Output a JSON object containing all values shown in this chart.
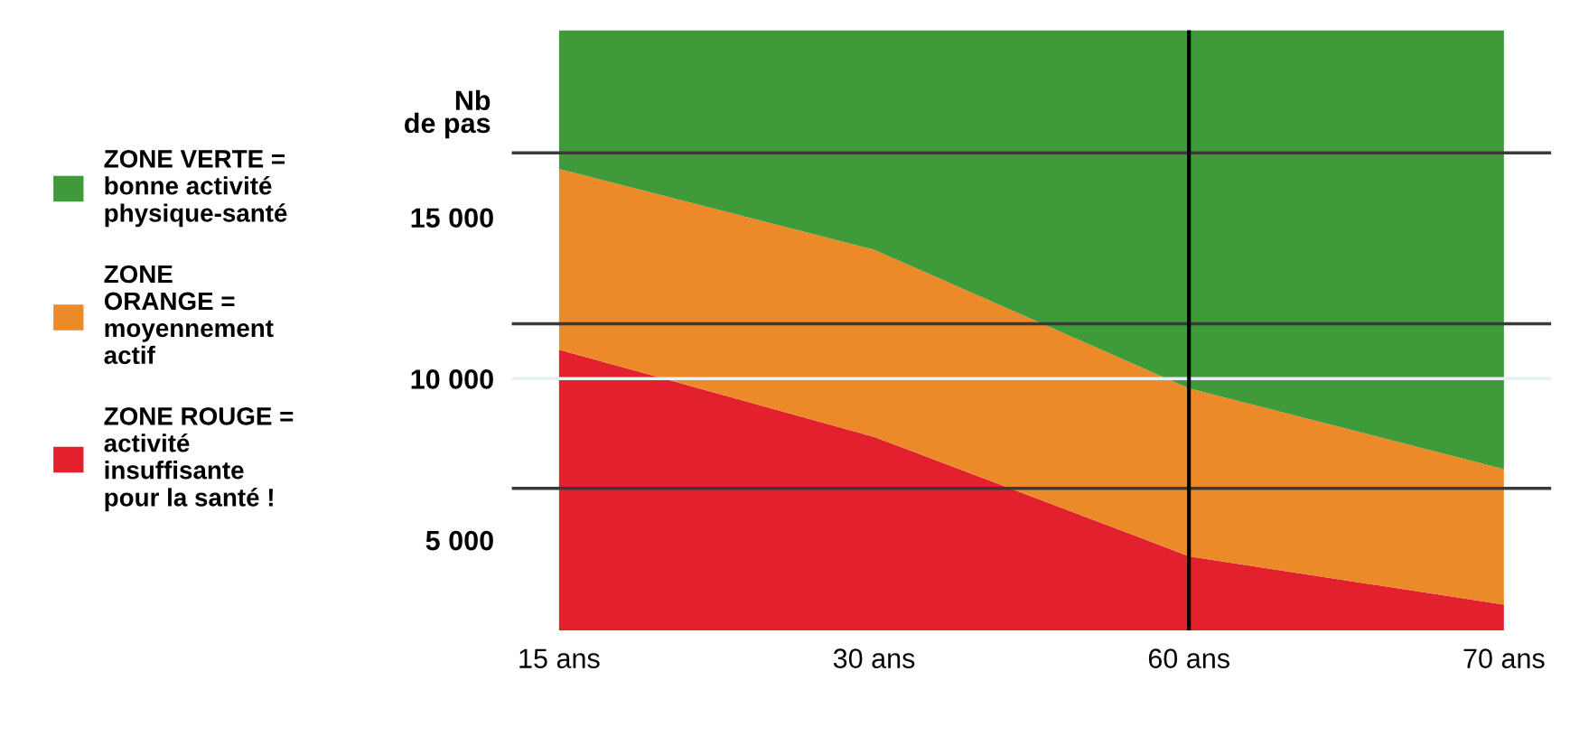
{
  "chart_data": {
    "type": "area",
    "stacked": true,
    "ylabel": "Nb\nde pas",
    "categories": [
      "15 ans",
      "30 ans",
      "60 ans",
      "70 ans"
    ],
    "series": [
      {
        "name": "ZONE ROUGE =\nactivité\ninsuffisante\npour la santé !",
        "color": "#e3202e",
        "values": [
          10900,
          8200,
          4500,
          3000
        ]
      },
      {
        "name": "ZONE\nORANGE =\nmoyennement\nactif",
        "color": "#ec8a2a",
        "values": [
          5600,
          5800,
          5200,
          4200
        ]
      },
      {
        "name": "ZONE VERTE =\nbonne activité\nphysique-santé",
        "color": "#3f9a3a",
        "values": [
          4300,
          6800,
          11100,
          13600
        ]
      }
    ],
    "ylim": [
      2200,
      20800
    ],
    "yticks": [
      {
        "value": 5000,
        "label": "5 000"
      },
      {
        "value": 10000,
        "label": "10 000"
      },
      {
        "value": 15000,
        "label": "15 000"
      }
    ],
    "ref_lines": [
      {
        "axis": "y",
        "value": 17000,
        "label": null,
        "color": "#3a3a3a"
      },
      {
        "axis": "y",
        "value": 11700,
        "label": null,
        "color": "#3a3a3a"
      },
      {
        "axis": "y",
        "value": 6600,
        "label": null,
        "color": "#3a3a3a"
      },
      {
        "axis": "y",
        "value": 10000,
        "label": null,
        "color": "#e8f0f4"
      },
      {
        "axis": "x",
        "value": "60 ans",
        "label": null,
        "color": "#000000"
      }
    ],
    "legend": "left",
    "grid": false
  }
}
